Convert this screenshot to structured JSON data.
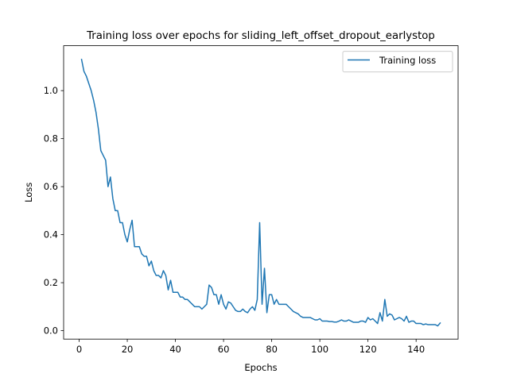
{
  "chart_data": {
    "type": "line",
    "title": "Training loss over epochs for sliding_left_offset_dropout_earlystop",
    "xlabel": "Epochs",
    "ylabel": "Loss",
    "xlim": [
      -6.45,
      157.45
    ],
    "ylim": [
      -0.035,
      1.187
    ],
    "xticks": [
      0,
      20,
      40,
      60,
      80,
      100,
      120,
      140
    ],
    "yticks": [
      0.0,
      0.2,
      0.4,
      0.6,
      0.8,
      1.0
    ],
    "ytick_labels": [
      "0.0",
      "0.2",
      "0.4",
      "0.6",
      "0.8",
      "1.0"
    ],
    "grid": false,
    "legend_position": "top-right",
    "series": [
      {
        "name": "Training loss",
        "color": "#1f77b4",
        "x": [
          1,
          2,
          3,
          4,
          5,
          6,
          7,
          8,
          9,
          10,
          11,
          12,
          13,
          14,
          15,
          16,
          17,
          18,
          19,
          20,
          21,
          22,
          23,
          24,
          25,
          26,
          27,
          28,
          29,
          30,
          31,
          32,
          33,
          34,
          35,
          36,
          37,
          38,
          39,
          40,
          41,
          42,
          43,
          44,
          45,
          46,
          47,
          48,
          49,
          50,
          51,
          52,
          53,
          54,
          55,
          56,
          57,
          58,
          59,
          60,
          61,
          62,
          63,
          64,
          65,
          66,
          67,
          68,
          69,
          70,
          71,
          72,
          73,
          74,
          75,
          76,
          77,
          78,
          79,
          80,
          81,
          82,
          83,
          84,
          85,
          86,
          87,
          88,
          89,
          90,
          91,
          92,
          93,
          94,
          95,
          96,
          97,
          98,
          99,
          100,
          101,
          102,
          103,
          104,
          105,
          106,
          107,
          108,
          109,
          110,
          111,
          112,
          113,
          114,
          115,
          116,
          117,
          118,
          119,
          120,
          121,
          122,
          123,
          124,
          125,
          126,
          127,
          128,
          129,
          130,
          131,
          132,
          133,
          134,
          135,
          136,
          137,
          138,
          139,
          140,
          141,
          142,
          143,
          144,
          145,
          146,
          147,
          148,
          149,
          150
        ],
        "y": [
          1.13,
          1.08,
          1.06,
          1.03,
          1.0,
          0.96,
          0.91,
          0.84,
          0.75,
          0.73,
          0.71,
          0.6,
          0.64,
          0.55,
          0.5,
          0.5,
          0.45,
          0.45,
          0.4,
          0.37,
          0.42,
          0.46,
          0.35,
          0.35,
          0.35,
          0.32,
          0.31,
          0.31,
          0.27,
          0.29,
          0.25,
          0.23,
          0.23,
          0.22,
          0.25,
          0.23,
          0.17,
          0.21,
          0.16,
          0.16,
          0.16,
          0.14,
          0.14,
          0.13,
          0.13,
          0.12,
          0.11,
          0.1,
          0.1,
          0.1,
          0.09,
          0.1,
          0.11,
          0.19,
          0.18,
          0.15,
          0.15,
          0.11,
          0.15,
          0.11,
          0.09,
          0.12,
          0.115,
          0.1,
          0.085,
          0.08,
          0.08,
          0.09,
          0.08,
          0.075,
          0.09,
          0.1,
          0.085,
          0.13,
          0.45,
          0.11,
          0.26,
          0.075,
          0.15,
          0.15,
          0.11,
          0.13,
          0.11,
          0.11,
          0.11,
          0.11,
          0.1,
          0.09,
          0.08,
          0.075,
          0.07,
          0.06,
          0.055,
          0.055,
          0.055,
          0.055,
          0.05,
          0.045,
          0.045,
          0.05,
          0.04,
          0.04,
          0.04,
          0.038,
          0.038,
          0.036,
          0.036,
          0.04,
          0.045,
          0.04,
          0.04,
          0.045,
          0.04,
          0.035,
          0.035,
          0.035,
          0.04,
          0.04,
          0.035,
          0.055,
          0.045,
          0.05,
          0.04,
          0.03,
          0.075,
          0.04,
          0.13,
          0.06,
          0.07,
          0.065,
          0.045,
          0.05,
          0.055,
          0.05,
          0.04,
          0.06,
          0.035,
          0.04,
          0.04,
          0.03,
          0.03,
          0.03,
          0.025,
          0.028,
          0.025,
          0.025,
          0.025,
          0.025,
          0.02,
          0.032
        ]
      }
    ]
  }
}
